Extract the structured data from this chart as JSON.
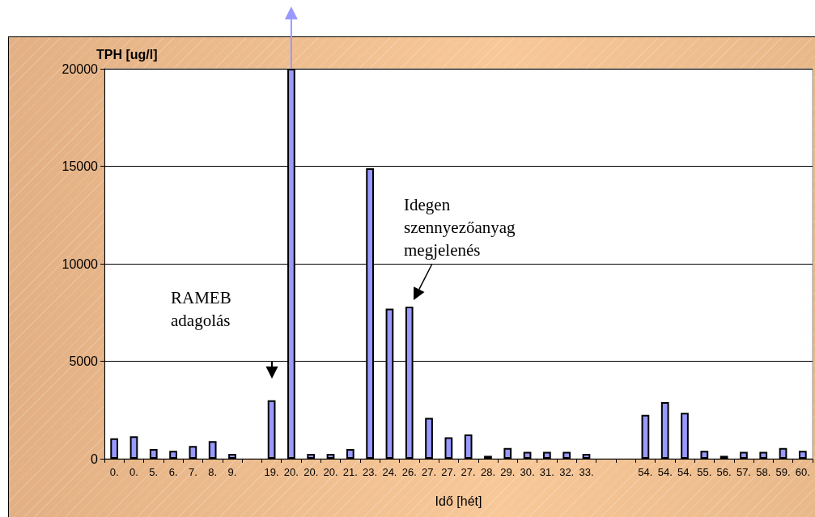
{
  "chart_data": {
    "type": "bar",
    "ylabel": "TPH [ug/l]",
    "xlabel": "Idő [hét]",
    "categories": [
      "0.",
      "0.",
      "5.",
      "6.",
      "7.",
      "8.",
      "9.",
      null,
      "19.",
      "20.",
      "20.",
      "20.",
      "21.",
      "23.",
      "24.",
      "26.",
      "27.",
      "27.",
      "27.",
      "28.",
      "29.",
      "30.",
      "31.",
      "32.",
      "33.",
      null,
      null,
      "54.",
      "54.",
      "54.",
      "55.",
      "56.",
      "57.",
      "58.",
      "59.",
      "60."
    ],
    "values": [
      1050,
      1150,
      500,
      400,
      650,
      900,
      250,
      null,
      3000,
      20000,
      250,
      250,
      500,
      14900,
      7700,
      7800,
      2100,
      1100,
      1250,
      150,
      550,
      350,
      350,
      350,
      250,
      null,
      null,
      2250,
      2900,
      2350,
      400,
      150,
      350,
      350,
      550,
      400
    ],
    "color": "#9999ff",
    "ylim": [
      0,
      20000
    ],
    "yticks": [
      0,
      5000,
      10000,
      15000,
      20000
    ],
    "grid": "y",
    "annotations": [
      "RAMEB adagolás",
      "Idegen szennyezőanyag megjelenés"
    ]
  }
}
